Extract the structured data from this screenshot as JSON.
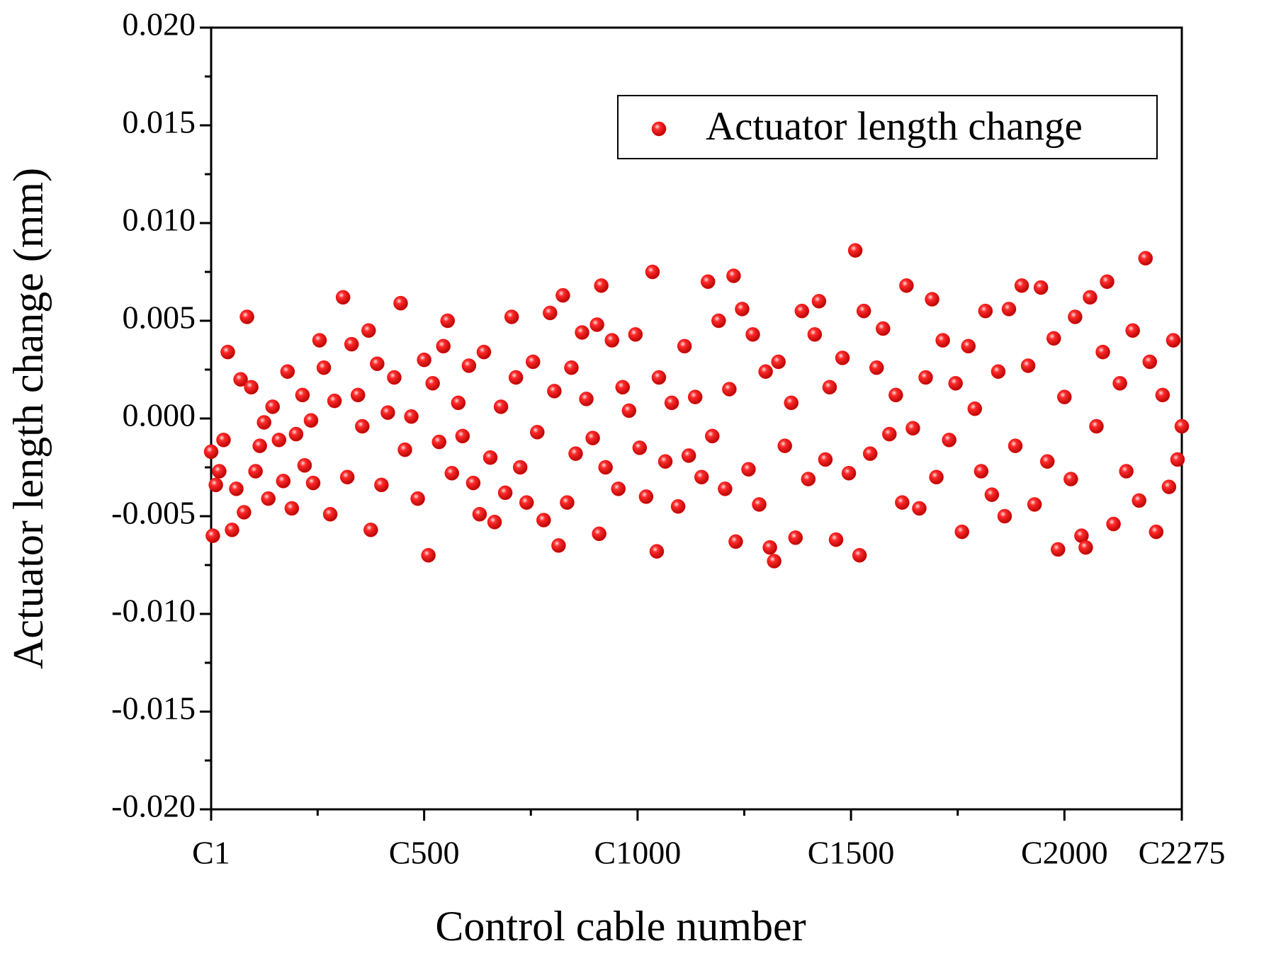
{
  "chart_data": {
    "type": "scatter",
    "x_label": "Control cable number",
    "y_label": "Actuator length change (mm)",
    "xlim": [
      1,
      2275
    ],
    "xticks": [
      {
        "value": 1,
        "label": "C1"
      },
      {
        "value": 500,
        "label": "C500"
      },
      {
        "value": 1000,
        "label": "C1000"
      },
      {
        "value": 1500,
        "label": "C1500"
      },
      {
        "value": 2000,
        "label": "C2000"
      },
      {
        "value": 2275,
        "label": "C2275"
      }
    ],
    "ylim": [
      -0.02,
      0.02
    ],
    "yticks": [
      {
        "value": -0.02,
        "label": "-0.020"
      },
      {
        "value": -0.015,
        "label": "-0.015"
      },
      {
        "value": -0.01,
        "label": "-0.010"
      },
      {
        "value": -0.005,
        "label": "-0.005"
      },
      {
        "value": 0,
        "label": "0.000"
      },
      {
        "value": 0.005,
        "label": "0.005"
      },
      {
        "value": 0.01,
        "label": "0.010"
      },
      {
        "value": 0.015,
        "label": "0.015"
      },
      {
        "value": 0.02,
        "label": "0.020"
      }
    ],
    "legend": "upper right",
    "series": [
      {
        "name": "Actuator length change",
        "color": "#ff0000",
        "x": [
          1,
          5,
          12,
          20,
          30,
          40,
          50,
          60,
          70,
          78,
          85,
          95,
          105,
          115,
          125,
          135,
          145,
          160,
          170,
          180,
          190,
          200,
          215,
          220,
          235,
          240,
          255,
          265,
          280,
          290,
          310,
          320,
          330,
          345,
          355,
          370,
          375,
          390,
          400,
          415,
          430,
          445,
          455,
          470,
          485,
          500,
          510,
          520,
          535,
          545,
          555,
          565,
          580,
          590,
          605,
          615,
          630,
          640,
          655,
          665,
          680,
          690,
          705,
          715,
          725,
          740,
          755,
          765,
          780,
          795,
          805,
          815,
          825,
          835,
          845,
          855,
          870,
          880,
          895,
          905,
          910,
          915,
          925,
          940,
          955,
          965,
          980,
          995,
          1005,
          1020,
          1035,
          1045,
          1050,
          1065,
          1080,
          1095,
          1110,
          1120,
          1135,
          1150,
          1165,
          1175,
          1190,
          1205,
          1215,
          1225,
          1230,
          1245,
          1260,
          1270,
          1285,
          1300,
          1310,
          1320,
          1330,
          1345,
          1360,
          1370,
          1385,
          1400,
          1415,
          1425,
          1440,
          1450,
          1465,
          1480,
          1495,
          1510,
          1520,
          1530,
          1545,
          1560,
          1575,
          1590,
          1605,
          1620,
          1630,
          1645,
          1660,
          1675,
          1690,
          1700,
          1715,
          1730,
          1745,
          1760,
          1775,
          1790,
          1805,
          1815,
          1830,
          1845,
          1860,
          1870,
          1885,
          1900,
          1915,
          1930,
          1945,
          1960,
          1975,
          1985,
          2000,
          2015,
          2025,
          2040,
          2050,
          2060,
          2075,
          2090,
          2100,
          2115,
          2130,
          2145,
          2160,
          2175,
          2190,
          2200,
          2215,
          2230,
          2245,
          2255,
          2265,
          2275
        ],
        "values": [
          -0.0017,
          -0.006,
          -0.0034,
          -0.0027,
          -0.0011,
          0.0034,
          -0.0057,
          -0.0036,
          0.002,
          -0.0048,
          0.0052,
          0.0016,
          -0.0027,
          -0.0014,
          -0.0002,
          -0.0041,
          0.0006,
          -0.0011,
          -0.0032,
          0.0024,
          -0.0046,
          -0.0008,
          0.0012,
          -0.0024,
          -0.0001,
          -0.0033,
          0.004,
          0.0026,
          -0.0049,
          0.0009,
          0.0062,
          -0.003,
          0.0038,
          0.0012,
          -0.0004,
          0.0045,
          -0.0057,
          0.0028,
          -0.0034,
          0.0003,
          0.0021,
          0.0059,
          -0.0016,
          0.0001,
          -0.0041,
          0.003,
          -0.007,
          0.0018,
          -0.0012,
          0.0037,
          0.005,
          -0.0028,
          0.0008,
          -0.0009,
          0.0027,
          -0.0033,
          -0.0049,
          0.0034,
          -0.002,
          -0.0053,
          0.0006,
          -0.0038,
          0.0052,
          0.0021,
          -0.0025,
          -0.0043,
          0.0029,
          -0.0007,
          -0.0052,
          0.0054,
          0.0014,
          -0.0065,
          0.0063,
          -0.0043,
          0.0026,
          -0.0018,
          0.0044,
          0.001,
          -0.001,
          0.0048,
          -0.0059,
          0.0068,
          -0.0025,
          0.004,
          -0.0036,
          0.0016,
          0.0004,
          0.0043,
          -0.0015,
          -0.004,
          0.0075,
          -0.0068,
          0.0021,
          -0.0022,
          0.0008,
          -0.0045,
          0.0037,
          -0.0019,
          0.0011,
          -0.003,
          0.007,
          -0.0009,
          0.005,
          -0.0036,
          0.0015,
          0.0073,
          -0.0063,
          0.0056,
          -0.0026,
          0.0043,
          -0.0044,
          0.0024,
          -0.0066,
          -0.0073,
          0.0029,
          -0.0014,
          0.0008,
          -0.0061,
          0.0055,
          -0.0031,
          0.0043,
          0.006,
          -0.0021,
          0.0016,
          -0.0062,
          0.0031,
          -0.0028,
          0.0086,
          -0.007,
          0.0055,
          -0.0018,
          0.0026,
          0.0046,
          -0.0008,
          0.0012,
          -0.0043,
          0.0068,
          -0.0005,
          -0.0046,
          0.0021,
          0.0061,
          -0.003,
          0.004,
          -0.0011,
          0.0018,
          -0.0058,
          0.0037,
          0.0005,
          -0.0027,
          0.0055,
          -0.0039,
          0.0024,
          -0.005,
          0.0056,
          -0.0014,
          0.0068,
          0.0027,
          -0.0044,
          0.0067,
          -0.0022,
          0.0041,
          -0.0067,
          0.0011,
          -0.0031,
          0.0052,
          -0.006,
          -0.0066,
          0.0062,
          -0.0004,
          0.0034,
          0.007,
          -0.0054,
          0.0018,
          -0.0027,
          0.0045,
          -0.0042,
          0.0082,
          0.0029,
          -0.0058,
          0.0012,
          -0.0035,
          0.004,
          -0.0021,
          -0.0004
        ]
      }
    ]
  }
}
